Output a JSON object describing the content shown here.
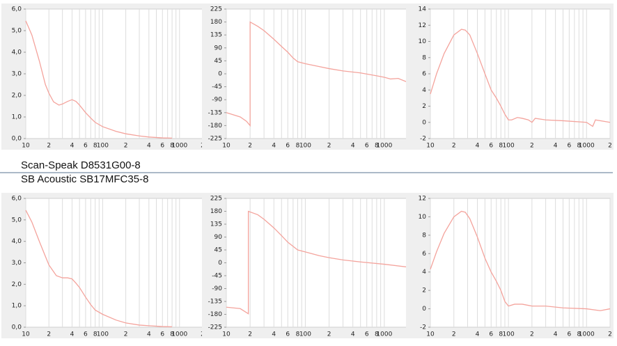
{
  "captions": [
    "Scan-Speak D8531G00-8",
    "SB Acoustic SB17MFC35-8"
  ],
  "chart_data": [
    {
      "type": "line",
      "xlog": true,
      "xlim": [
        10,
        2000
      ],
      "ylim": [
        0,
        6
      ],
      "xticks": [
        10,
        {
          "value": 20,
          "label": "2"
        },
        {
          "value": 40,
          "label": "4"
        },
        {
          "value": 60,
          "label": "6"
        },
        {
          "value": 80,
          "label": "8"
        },
        100,
        {
          "value": 200,
          "label": "2"
        },
        {
          "value": 400,
          "label": "4"
        },
        {
          "value": 600,
          "label": "6"
        },
        {
          "value": 800,
          "label": "8"
        },
        1000,
        {
          "value": 2000,
          "label": "2"
        }
      ],
      "xminor": [
        30,
        50,
        70,
        90,
        300,
        500,
        700,
        900
      ],
      "yticks": [
        {
          "value": 0,
          "label": "0,0"
        },
        {
          "value": 1,
          "label": "1,0"
        },
        {
          "value": 2,
          "label": "2,0"
        },
        {
          "value": 3,
          "label": "3,0"
        },
        {
          "value": 4,
          "label": "4,0"
        },
        {
          "value": 5,
          "label": "5,0"
        },
        {
          "value": 6,
          "label": "6,0"
        }
      ],
      "x": [
        10,
        12,
        15,
        18,
        20,
        23,
        27,
        30,
        35,
        40,
        45,
        50,
        60,
        70,
        80,
        100,
        150,
        200,
        300,
        400,
        600,
        800
      ],
      "series": [
        {
          "color": "#f4a39c",
          "values": [
            5.45,
            4.8,
            3.6,
            2.5,
            2.1,
            1.7,
            1.55,
            1.6,
            1.72,
            1.8,
            1.72,
            1.55,
            1.2,
            0.95,
            0.75,
            0.55,
            0.33,
            0.22,
            0.12,
            0.07,
            0.03,
            0.02
          ]
        }
      ]
    },
    {
      "type": "line",
      "xlog": true,
      "xlim": [
        10,
        2000
      ],
      "ylim": [
        -225,
        225
      ],
      "xticks": [
        10,
        {
          "value": 20,
          "label": "2"
        },
        {
          "value": 40,
          "label": "4"
        },
        {
          "value": 60,
          "label": "6"
        },
        {
          "value": 80,
          "label": "8"
        },
        100,
        {
          "value": 200,
          "label": "2"
        },
        {
          "value": 400,
          "label": "4"
        },
        {
          "value": 600,
          "label": "6"
        },
        {
          "value": 800,
          "label": "8"
        },
        1000,
        {
          "value": 2000,
          "label": "2"
        }
      ],
      "xminor": [
        30,
        50,
        70,
        90,
        300,
        500,
        700,
        900
      ],
      "yticks": [
        -225,
        -180,
        -135,
        -90,
        -45,
        0,
        45,
        90,
        135,
        180,
        225
      ],
      "x": [
        10,
        15,
        18,
        20,
        20,
        25,
        30,
        40,
        50,
        60,
        70,
        80,
        100,
        150,
        200,
        300,
        500,
        800,
        1000,
        1200,
        1500,
        2000
      ],
      "series": [
        {
          "color": "#f4a39c",
          "values": [
            -135,
            -150,
            -165,
            -180,
            180,
            165,
            150,
            120,
            95,
            75,
            55,
            42,
            35,
            25,
            18,
            10,
            3,
            -7,
            -12,
            -18,
            -16,
            -30
          ]
        }
      ]
    },
    {
      "type": "line",
      "xlog": true,
      "xlim": [
        10,
        2000
      ],
      "ylim": [
        -2,
        14
      ],
      "xticks": [
        10,
        {
          "value": 20,
          "label": "2"
        },
        {
          "value": 40,
          "label": "4"
        },
        {
          "value": 60,
          "label": "6"
        },
        {
          "value": 80,
          "label": "8"
        },
        100,
        {
          "value": 200,
          "label": "2"
        },
        {
          "value": 400,
          "label": "4"
        },
        {
          "value": 600,
          "label": "6"
        },
        {
          "value": 800,
          "label": "8"
        },
        1000,
        {
          "value": 2000,
          "label": "2"
        }
      ],
      "xminor": [
        30,
        50,
        70,
        90,
        300,
        500,
        700,
        900
      ],
      "yticks": [
        -2,
        0,
        2,
        4,
        6,
        8,
        10,
        12,
        14
      ],
      "x": [
        10,
        12,
        15,
        20,
        25,
        28,
        32,
        40,
        50,
        60,
        70,
        80,
        90,
        100,
        110,
        130,
        150,
        180,
        200,
        220,
        300,
        500,
        1000,
        1200,
        1300,
        2000
      ],
      "series": [
        {
          "color": "#f4a39c",
          "values": [
            3.5,
            6,
            8.5,
            10.8,
            11.5,
            11.4,
            10.8,
            8.5,
            6,
            4,
            3,
            2,
            1,
            0.3,
            0.3,
            0.6,
            0.5,
            0.3,
            0,
            0.5,
            0.3,
            0.2,
            0,
            -0.5,
            0.3,
            0
          ]
        }
      ]
    },
    {
      "type": "line",
      "xlog": true,
      "xlim": [
        10,
        2000
      ],
      "ylim": [
        0,
        6
      ],
      "xticks": [
        10,
        {
          "value": 20,
          "label": "2"
        },
        {
          "value": 40,
          "label": "4"
        },
        {
          "value": 60,
          "label": "6"
        },
        {
          "value": 80,
          "label": "8"
        },
        100,
        {
          "value": 200,
          "label": "2"
        },
        {
          "value": 400,
          "label": "4"
        },
        {
          "value": 600,
          "label": "6"
        },
        {
          "value": 800,
          "label": "8"
        },
        1000,
        {
          "value": 2000,
          "label": "2"
        }
      ],
      "xminor": [
        30,
        50,
        70,
        90,
        300,
        500,
        700,
        900
      ],
      "yticks": [
        {
          "value": 0,
          "label": "0,0"
        },
        {
          "value": 1,
          "label": "1,0"
        },
        {
          "value": 2,
          "label": "2,0"
        },
        {
          "value": 3,
          "label": "3,0"
        },
        {
          "value": 4,
          "label": "4,0"
        },
        {
          "value": 5,
          "label": "5,0"
        },
        {
          "value": 6,
          "label": "6,0"
        }
      ],
      "x": [
        10,
        12,
        15,
        18,
        20,
        25,
        30,
        35,
        40,
        45,
        50,
        60,
        70,
        80,
        100,
        150,
        200,
        300,
        400,
        600,
        800
      ],
      "series": [
        {
          "color": "#f4a39c",
          "values": [
            5.45,
            4.9,
            4.0,
            3.3,
            2.9,
            2.4,
            2.3,
            2.3,
            2.25,
            2.05,
            1.85,
            1.4,
            1.05,
            0.8,
            0.6,
            0.33,
            0.2,
            0.1,
            0.07,
            0.03,
            0.02
          ]
        }
      ]
    },
    {
      "type": "line",
      "xlog": true,
      "xlim": [
        10,
        2000
      ],
      "ylim": [
        -225,
        225
      ],
      "xticks": [
        10,
        {
          "value": 20,
          "label": "2"
        },
        {
          "value": 40,
          "label": "4"
        },
        {
          "value": 60,
          "label": "6"
        },
        {
          "value": 80,
          "label": "8"
        },
        100,
        {
          "value": 200,
          "label": "2"
        },
        {
          "value": 400,
          "label": "4"
        },
        {
          "value": 600,
          "label": "6"
        },
        {
          "value": 800,
          "label": "8"
        },
        1000,
        {
          "value": 2000,
          "label": "2"
        }
      ],
      "xminor": [
        30,
        50,
        70,
        90,
        300,
        500,
        700,
        900
      ],
      "yticks": [
        -225,
        -180,
        -135,
        -90,
        -45,
        0,
        45,
        90,
        135,
        180,
        225
      ],
      "x": [
        10,
        15,
        19,
        19,
        25,
        30,
        40,
        50,
        60,
        80,
        100,
        150,
        200,
        300,
        500,
        1000,
        2000
      ],
      "series": [
        {
          "color": "#f4a39c",
          "values": [
            -155,
            -160,
            -178,
            180,
            168,
            152,
            122,
            95,
            72,
            45,
            38,
            25,
            18,
            10,
            3,
            -5,
            -15
          ]
        }
      ]
    },
    {
      "type": "line",
      "xlog": true,
      "xlim": [
        10,
        2000
      ],
      "ylim": [
        -2,
        12
      ],
      "xticks": [
        10,
        {
          "value": 20,
          "label": "2"
        },
        {
          "value": 40,
          "label": "4"
        },
        {
          "value": 60,
          "label": "6"
        },
        {
          "value": 80,
          "label": "8"
        },
        100,
        {
          "value": 200,
          "label": "2"
        },
        {
          "value": 400,
          "label": "4"
        },
        {
          "value": 600,
          "label": "6"
        },
        {
          "value": 800,
          "label": "8"
        },
        1000,
        {
          "value": 2000,
          "label": "2"
        }
      ],
      "xminor": [
        30,
        50,
        70,
        90,
        300,
        500,
        700,
        900
      ],
      "yticks": [
        -2,
        0,
        2,
        4,
        6,
        8,
        10,
        12
      ],
      "x": [
        10,
        12,
        15,
        20,
        25,
        28,
        32,
        40,
        50,
        60,
        70,
        80,
        90,
        100,
        120,
        150,
        200,
        300,
        500,
        1000,
        1500,
        2000
      ],
      "series": [
        {
          "color": "#f4a39c",
          "values": [
            4.3,
            6.2,
            8.2,
            10,
            10.6,
            10.5,
            9.8,
            7.8,
            5.5,
            4,
            3,
            2,
            0.8,
            0.3,
            0.5,
            0.5,
            0.3,
            0.3,
            0.1,
            0,
            -0.2,
            0
          ]
        }
      ]
    }
  ]
}
